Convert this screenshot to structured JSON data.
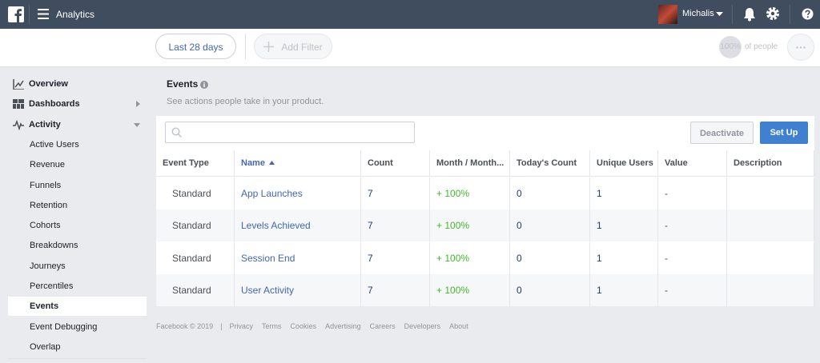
{
  "topbar": {
    "app": "Analytics",
    "user": "Michalis"
  },
  "filterbar": {
    "date_range": "Last 28 days",
    "add_filter": "Add Filter",
    "audience_percent": "100%",
    "audience_label": "of people"
  },
  "sidebar": {
    "items": [
      {
        "label": "Overview",
        "level": "top",
        "icon": "overview"
      },
      {
        "label": "Dashboards",
        "level": "top",
        "icon": "dashboards",
        "expand": "right"
      },
      {
        "label": "Activity",
        "level": "top",
        "icon": "activity",
        "expand": "down"
      },
      {
        "label": "Active Users",
        "level": "sub"
      },
      {
        "label": "Revenue",
        "level": "sub"
      },
      {
        "label": "Funnels",
        "level": "sub"
      },
      {
        "label": "Retention",
        "level": "sub"
      },
      {
        "label": "Cohorts",
        "level": "sub"
      },
      {
        "label": "Breakdowns",
        "level": "sub"
      },
      {
        "label": "Journeys",
        "level": "sub"
      },
      {
        "label": "Percentiles",
        "level": "sub"
      },
      {
        "label": "Events",
        "level": "sub",
        "selected": true
      },
      {
        "label": "Event Debugging",
        "level": "sub"
      },
      {
        "label": "Overlap",
        "level": "sub"
      }
    ]
  },
  "page": {
    "title": "Events",
    "subtitle": "See actions people take in your product."
  },
  "toolbar": {
    "deactivate": "Deactivate",
    "setup": "Set Up"
  },
  "table": {
    "columns": [
      "Event Type",
      "Name",
      "Count",
      "Month / Month...",
      "Today's Count",
      "Unique Users",
      "Value",
      "Description"
    ],
    "sorted_column": 1,
    "rows": [
      [
        "Standard",
        "App Launches",
        "7",
        "+ 100%",
        "0",
        "1",
        "-",
        ""
      ],
      [
        "Standard",
        "Levels Achieved",
        "7",
        "+ 100%",
        "0",
        "1",
        "-",
        ""
      ],
      [
        "Standard",
        "Session End",
        "7",
        "+ 100%",
        "0",
        "1",
        "-",
        ""
      ],
      [
        "Standard",
        "User Activity",
        "7",
        "+ 100%",
        "0",
        "1",
        "-",
        ""
      ]
    ]
  },
  "footer": {
    "copyright": "Facebook © 2019",
    "separator": "|",
    "links": [
      "Privacy",
      "Terms",
      "Cookies",
      "Advertising",
      "Careers",
      "Developers",
      "About"
    ]
  }
}
